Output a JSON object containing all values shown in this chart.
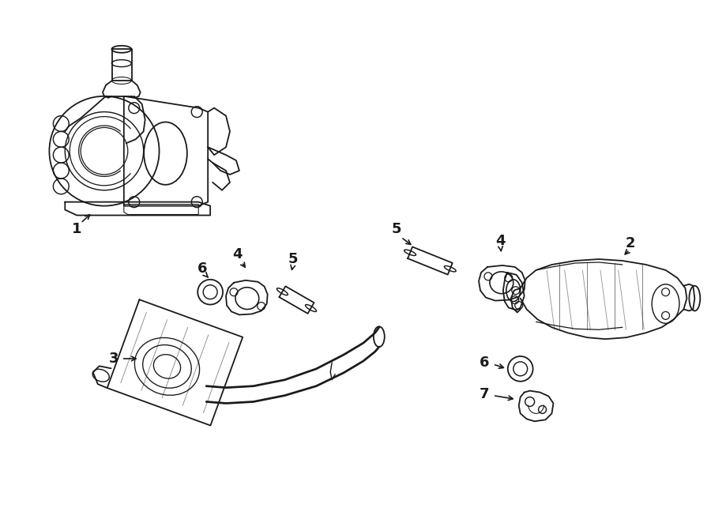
{
  "background_color": "#ffffff",
  "line_color": "#1a1a1a",
  "line_width": 1.3,
  "fig_width": 9.0,
  "fig_height": 6.62,
  "dpi": 100,
  "label_fontsize": 13,
  "arrow_lw": 1.2
}
